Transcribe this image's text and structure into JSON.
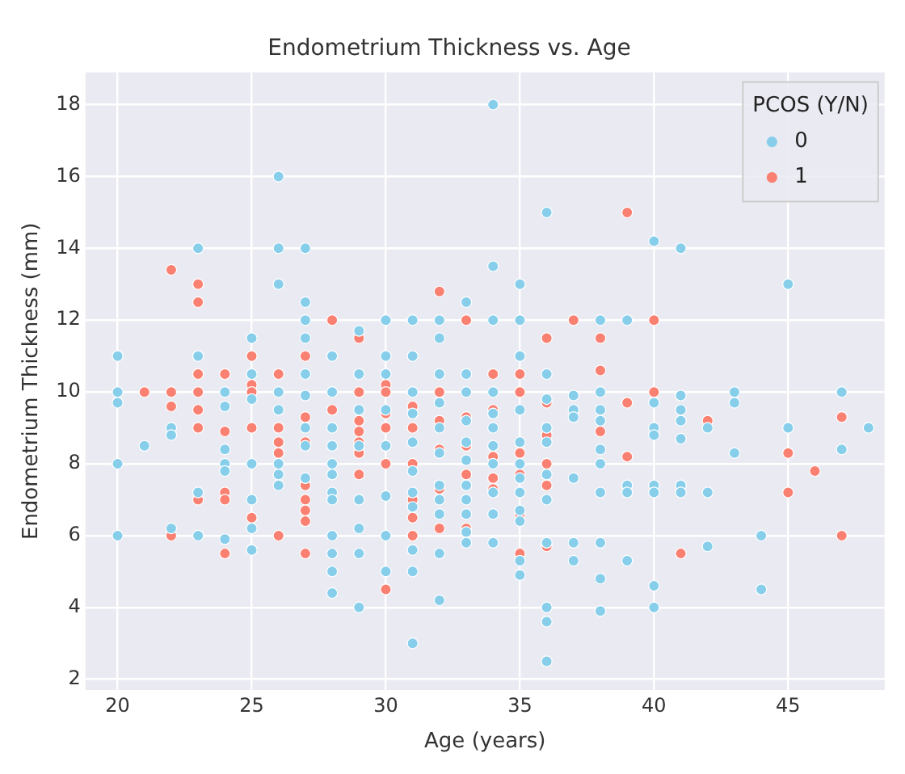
{
  "chart_data": {
    "type": "scatter",
    "title": "Endometrium Thickness vs. Age",
    "xlabel": "Age (years)",
    "ylabel": "Endometrium Thickness (mm)",
    "legend_title": "PCOS (Y/N)",
    "legend": "top right",
    "grid": true,
    "marker": "circle",
    "xlim": [
      18.8,
      48.6
    ],
    "xticks": [
      20,
      25,
      30,
      35,
      40,
      45
    ],
    "ylim": [
      1.7,
      18.9
    ],
    "yticks": [
      2,
      4,
      6,
      8,
      10,
      12,
      14,
      16,
      18
    ],
    "series": [
      {
        "name": "0",
        "color": "#87ceeb",
        "x": [
          20,
          20,
          20,
          20,
          20,
          21,
          22,
          22,
          22,
          23,
          23,
          23,
          23,
          24,
          24,
          24,
          24,
          24,
          24,
          25,
          25,
          25,
          25,
          25,
          25,
          25,
          26,
          26,
          26,
          26,
          26,
          26,
          26,
          26,
          27,
          27,
          27,
          27,
          27,
          27,
          27,
          27,
          27,
          28,
          28,
          28,
          28,
          28,
          28,
          28,
          28,
          28,
          28,
          28,
          28,
          29,
          29,
          29,
          29,
          29,
          29,
          29,
          29,
          30,
          30,
          30,
          30,
          30,
          30,
          30,
          30,
          31,
          31,
          31,
          31,
          31,
          31,
          31,
          31,
          31,
          31,
          31,
          32,
          32,
          32,
          32,
          32,
          32,
          32,
          32,
          32,
          32,
          32,
          33,
          33,
          33,
          33,
          33,
          33,
          33,
          33,
          33,
          33,
          33,
          34,
          34,
          34,
          34,
          34,
          34,
          34,
          34,
          34,
          34,
          34,
          35,
          35,
          35,
          35,
          35,
          35,
          35,
          35,
          35,
          35,
          35,
          35,
          36,
          36,
          36,
          36,
          36,
          36,
          36,
          36,
          36,
          36,
          36,
          37,
          37,
          37,
          37,
          37,
          37,
          38,
          38,
          38,
          38,
          38,
          38,
          38,
          38,
          38,
          38,
          39,
          39,
          39,
          39,
          40,
          40,
          40,
          40,
          40,
          40,
          40,
          40,
          41,
          41,
          41,
          41,
          41,
          41,
          41,
          42,
          42,
          42,
          43,
          43,
          43,
          44,
          44,
          45,
          45,
          47,
          47,
          48
        ],
        "values": [
          11,
          10,
          9.7,
          8,
          6,
          8.5,
          9,
          8.8,
          6.2,
          14,
          11,
          7.2,
          6,
          10,
          9.6,
          8.4,
          8,
          7.8,
          5.9,
          11.5,
          10.5,
          9.8,
          8,
          7,
          6.2,
          5.6,
          16,
          14,
          13,
          10,
          9.5,
          8,
          7.7,
          7.4,
          14,
          12.5,
          12,
          11.5,
          10.5,
          9.9,
          9,
          8.5,
          7.6,
          11,
          10,
          9,
          8.5,
          8,
          7.7,
          7.2,
          7,
          6,
          5.5,
          5,
          4.4,
          11.7,
          10.5,
          9.5,
          8.5,
          7,
          6.2,
          5.5,
          4,
          12,
          11,
          10.5,
          9.5,
          8.5,
          7.1,
          6,
          5,
          12,
          11,
          10,
          9.4,
          8.6,
          7.8,
          7.2,
          6.8,
          5.6,
          5,
          3,
          12,
          11.5,
          10.5,
          9.7,
          9,
          8.3,
          7.4,
          7,
          6.6,
          5.5,
          4.2,
          12.5,
          10.5,
          10,
          9.2,
          8.6,
          8.1,
          7.4,
          7,
          6.6,
          6.1,
          5.8,
          18,
          13.5,
          12,
          10,
          9.4,
          9,
          8.5,
          8,
          7.2,
          6.6,
          5.8,
          13,
          12,
          11,
          9.5,
          8.6,
          8,
          7.6,
          7.2,
          6.7,
          6.4,
          5.3,
          4.9,
          15,
          10.5,
          9.8,
          9,
          8.6,
          7.7,
          7,
          5.8,
          4,
          3.6,
          2.5,
          9.9,
          9.5,
          9.3,
          7.6,
          5.8,
          5.3,
          12,
          10,
          9.5,
          9.2,
          8.4,
          8,
          7.2,
          5.8,
          4.8,
          3.9,
          12,
          7.4,
          7.2,
          5.3,
          14.2,
          9.7,
          9,
          8.8,
          7.4,
          7.2,
          4.6,
          4,
          14,
          9.9,
          9.5,
          9.2,
          8.7,
          7.4,
          7.2,
          9,
          7.2,
          5.7,
          10,
          9.7,
          8.3,
          6,
          4.5,
          13,
          9,
          10,
          8.4,
          9
        ]
      },
      {
        "name": "1",
        "color": "#fa8072",
        "x": [
          21,
          22,
          22,
          22,
          22,
          23,
          23,
          23,
          23,
          23,
          23,
          23,
          24,
          24,
          24,
          24,
          24,
          25,
          25,
          25,
          25,
          25,
          26,
          26,
          26,
          26,
          26,
          27,
          27,
          27,
          27,
          27,
          27,
          27,
          27,
          28,
          28,
          29,
          29,
          29,
          29,
          29,
          29,
          29,
          30,
          30,
          30,
          30,
          30,
          30,
          31,
          31,
          31,
          31,
          31,
          31,
          32,
          32,
          32,
          32,
          32,
          32,
          33,
          33,
          33,
          33,
          33,
          34,
          34,
          34,
          34,
          34,
          35,
          35,
          35,
          35,
          35,
          35,
          36,
          36,
          36,
          36,
          36,
          36,
          37,
          38,
          38,
          38,
          39,
          39,
          39,
          40,
          40,
          41,
          42,
          45,
          45,
          46,
          47,
          47
        ],
        "values": [
          10,
          13.4,
          10,
          9.6,
          6,
          13,
          12.5,
          10.5,
          10,
          9.5,
          9,
          7,
          10.5,
          8.9,
          7.2,
          7,
          5.5,
          11,
          10.2,
          10,
          9,
          6.5,
          10.5,
          9,
          8.6,
          8.3,
          6,
          11,
          9.3,
          8.6,
          7.4,
          7,
          6.7,
          6.4,
          5.5,
          12,
          9.5,
          11.5,
          10,
          9.2,
          8.9,
          8.6,
          8.3,
          7.7,
          10.2,
          10,
          9.4,
          9,
          8,
          4.5,
          9.6,
          9,
          8,
          7,
          6.5,
          6,
          12.8,
          10,
          9.2,
          8.4,
          7.3,
          6.2,
          12,
          9.3,
          8.5,
          7.7,
          6.2,
          10.5,
          9.5,
          8.2,
          7.6,
          7.3,
          10.5,
          10,
          8.3,
          7.7,
          6.6,
          5.5,
          11.5,
          9.7,
          8.8,
          8,
          7.4,
          5.7,
          12,
          11.5,
          10.6,
          8.9,
          15,
          9.7,
          8.2,
          12,
          10,
          5.5,
          9.2,
          8.3,
          7.2,
          7.8,
          9.3,
          6
        ]
      }
    ]
  }
}
